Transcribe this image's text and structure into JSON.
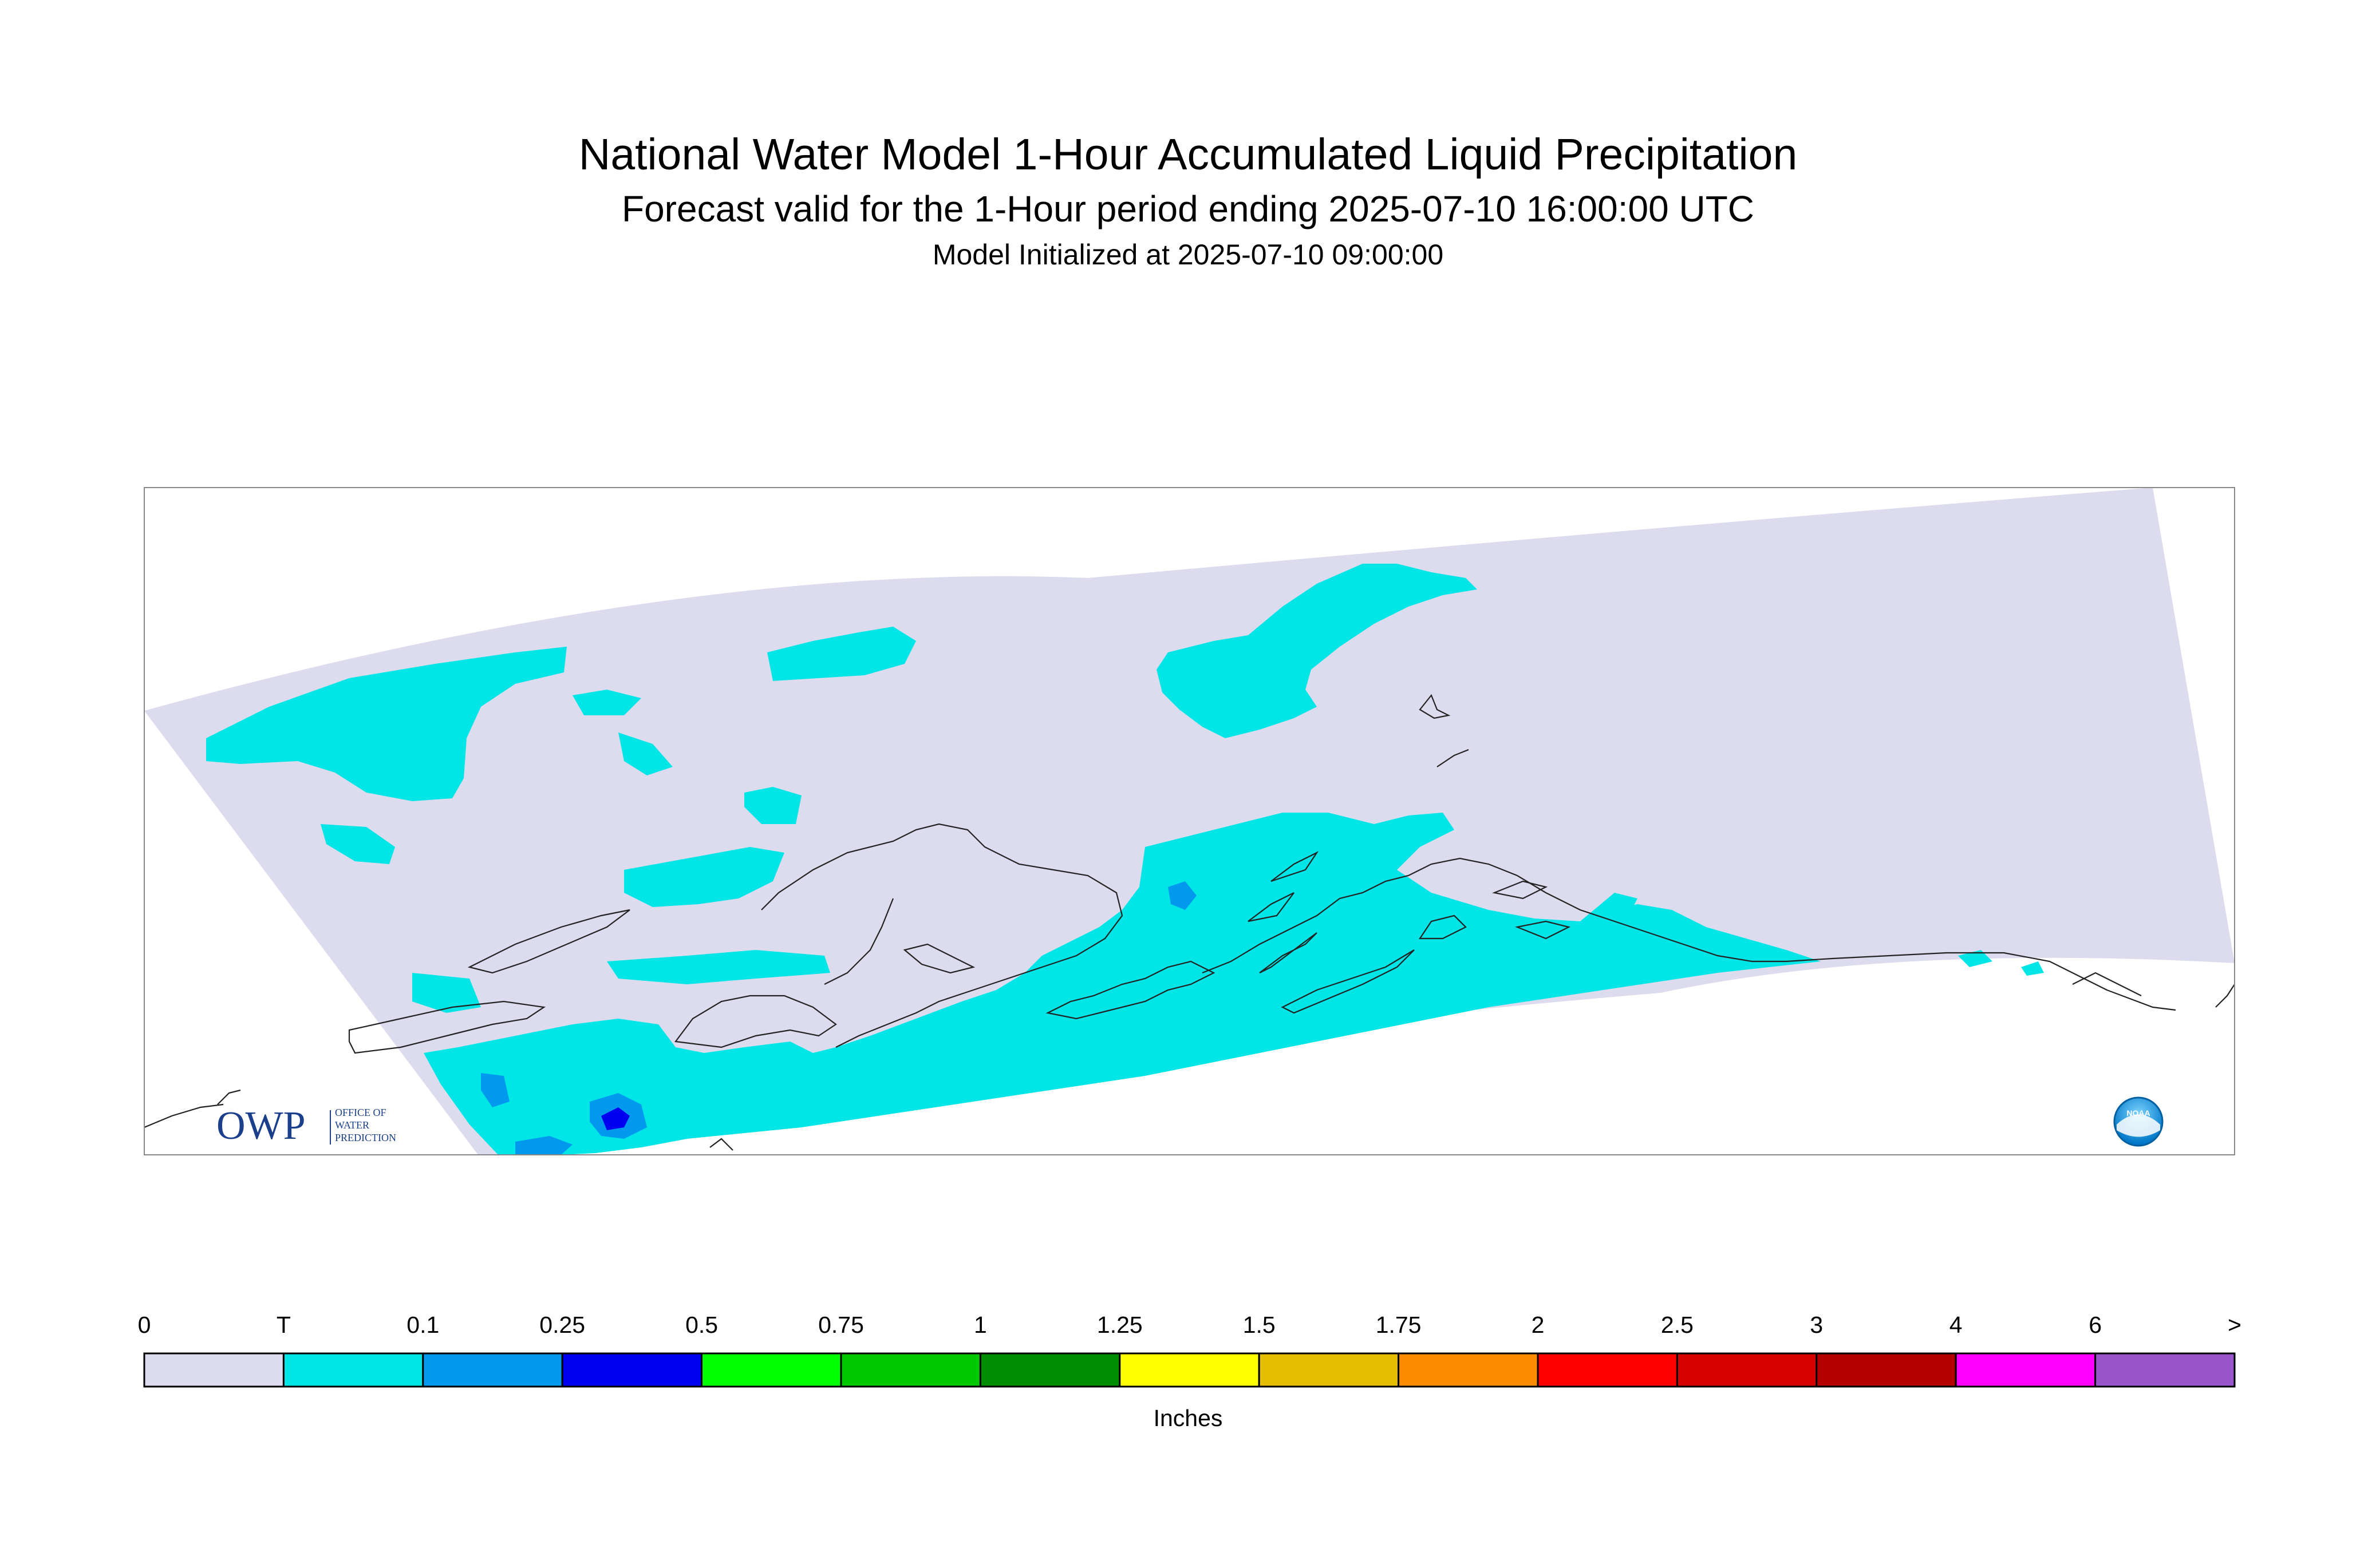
{
  "title": "National Water Model 1-Hour Accumulated Liquid Precipitation",
  "subtitle": "Forecast valid for the 1-Hour period ending 2025-07-10 16:00:00 UTC",
  "init_line": "Model Initialized at 2025-07-10 09:00:00",
  "logos": {
    "owp": {
      "abbrev": "OWP",
      "lines": [
        "OFFICE OF",
        "WATER",
        "PREDICTION"
      ]
    },
    "noaa": {
      "text": "NOAA"
    }
  },
  "legend": {
    "units": "Inches",
    "tick_labels": [
      "0",
      "T",
      "0.1",
      "0.25",
      "0.5",
      "0.75",
      "1",
      "1.25",
      "1.5",
      "1.75",
      "2",
      "2.5",
      "3",
      "4",
      "6",
      ">"
    ],
    "colors": [
      "#dcdcee",
      "#00e5e5",
      "#0099ee",
      "#0000f0",
      "#00ff00",
      "#00c800",
      "#008c00",
      "#ffff00",
      "#e6be00",
      "#ff8c00",
      "#ff0000",
      "#d70000",
      "#b40000",
      "#ff00ff",
      "#9955cc"
    ]
  },
  "colors": {
    "no_precip": "#dcdcee",
    "trace": "#00e5e5",
    "light": "#0099ee",
    "moderate": "#0000f0",
    "coastline": "#222222"
  }
}
